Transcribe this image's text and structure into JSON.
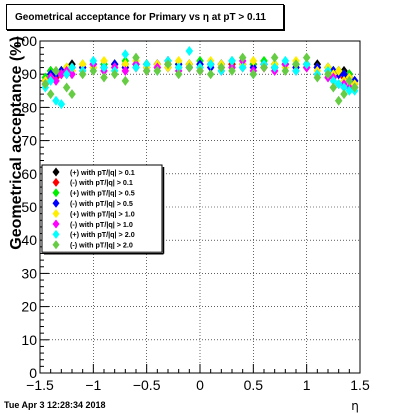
{
  "title": "Geometrical acceptance for Primary vs    η at pT  > 0.11",
  "timestamp": "Tue Apr  3 12:28:34 2018",
  "chart_data": {
    "type": "scatter",
    "xlabel": "η",
    "ylabel": "Geometrical acceptance (%)",
    "xlim": [
      -1.5,
      1.5
    ],
    "ylim": [
      0,
      100
    ],
    "x_ticks": [
      "−1.5",
      "−1",
      "−0.5",
      "0",
      "0.5",
      "1",
      "1.5"
    ],
    "y_ticks": [
      "0",
      "10",
      "20",
      "30",
      "40",
      "50",
      "60",
      "70",
      "80",
      "90",
      "100"
    ],
    "grid": true,
    "legend_position": "left-middle",
    "series": [
      {
        "name": "(+) with pT/|q| > 0.1",
        "color": "#000000",
        "values": [
          [
            -1.45,
            88
          ],
          [
            -1.4,
            91
          ],
          [
            -1.35,
            90
          ],
          [
            -1.3,
            91
          ],
          [
            -1.25,
            91
          ],
          [
            -1.2,
            93
          ],
          [
            -1.1,
            92
          ],
          [
            -1.0,
            93
          ],
          [
            -0.9,
            93
          ],
          [
            -0.8,
            93
          ],
          [
            -0.7,
            93
          ],
          [
            -0.6,
            93
          ],
          [
            -0.5,
            93
          ],
          [
            -0.4,
            93
          ],
          [
            -0.3,
            93
          ],
          [
            -0.2,
            93
          ],
          [
            -0.1,
            93
          ],
          [
            0.0,
            93
          ],
          [
            0.1,
            93
          ],
          [
            0.2,
            93
          ],
          [
            0.3,
            93
          ],
          [
            0.4,
            93
          ],
          [
            0.5,
            93
          ],
          [
            0.6,
            93
          ],
          [
            0.7,
            93
          ],
          [
            0.8,
            93
          ],
          [
            0.9,
            93
          ],
          [
            1.0,
            93
          ],
          [
            1.1,
            93
          ],
          [
            1.2,
            92
          ],
          [
            1.25,
            91
          ],
          [
            1.3,
            91
          ],
          [
            1.35,
            91
          ],
          [
            1.4,
            90
          ],
          [
            1.45,
            88
          ]
        ]
      },
      {
        "name": "(-) with pT/|q| > 0.1",
        "color": "#ff0000",
        "values": [
          [
            -1.45,
            87
          ],
          [
            -1.4,
            89
          ],
          [
            -1.35,
            89
          ],
          [
            -1.3,
            90
          ],
          [
            -1.25,
            90
          ],
          [
            -1.2,
            91
          ],
          [
            -1.1,
            92
          ],
          [
            -1.0,
            92
          ],
          [
            -0.9,
            92
          ],
          [
            -0.8,
            93
          ],
          [
            -0.7,
            92
          ],
          [
            -0.6,
            92
          ],
          [
            -0.5,
            93
          ],
          [
            -0.4,
            92
          ],
          [
            -0.3,
            93
          ],
          [
            -0.2,
            92
          ],
          [
            -0.1,
            93
          ],
          [
            0.0,
            92
          ],
          [
            0.1,
            93
          ],
          [
            0.2,
            92
          ],
          [
            0.3,
            93
          ],
          [
            0.4,
            92
          ],
          [
            0.5,
            93
          ],
          [
            0.6,
            92
          ],
          [
            0.7,
            92
          ],
          [
            0.8,
            93
          ],
          [
            0.9,
            92
          ],
          [
            1.0,
            92
          ],
          [
            1.1,
            92
          ],
          [
            1.2,
            91
          ],
          [
            1.25,
            90
          ],
          [
            1.3,
            90
          ],
          [
            1.35,
            89
          ],
          [
            1.4,
            89
          ],
          [
            1.45,
            87
          ]
        ]
      },
      {
        "name": "(+) with pT/|q| > 0.5",
        "color": "#00ee00",
        "values": [
          [
            -1.45,
            89
          ],
          [
            -1.4,
            91
          ],
          [
            -1.35,
            90
          ],
          [
            -1.3,
            91
          ],
          [
            -1.25,
            92
          ],
          [
            -1.2,
            92
          ],
          [
            -1.1,
            93
          ],
          [
            -1.0,
            92
          ],
          [
            -0.9,
            93
          ],
          [
            -0.8,
            93
          ],
          [
            -0.7,
            94
          ],
          [
            -0.6,
            93
          ],
          [
            -0.5,
            93
          ],
          [
            -0.4,
            93
          ],
          [
            -0.3,
            94
          ],
          [
            -0.2,
            93
          ],
          [
            -0.1,
            93
          ],
          [
            0.0,
            94
          ],
          [
            0.1,
            93
          ],
          [
            0.2,
            93
          ],
          [
            0.3,
            94
          ],
          [
            0.4,
            93
          ],
          [
            0.5,
            93
          ],
          [
            0.6,
            94
          ],
          [
            0.7,
            93
          ],
          [
            0.8,
            93
          ],
          [
            0.9,
            93
          ],
          [
            1.0,
            93
          ],
          [
            1.1,
            92
          ],
          [
            1.2,
            92
          ],
          [
            1.25,
            91
          ],
          [
            1.3,
            91
          ],
          [
            1.35,
            90
          ],
          [
            1.4,
            90
          ],
          [
            1.45,
            88
          ]
        ]
      },
      {
        "name": "(-) with pT/|q| > 0.5",
        "color": "#0000ff",
        "values": [
          [
            -1.45,
            88
          ],
          [
            -1.4,
            90
          ],
          [
            -1.35,
            90
          ],
          [
            -1.3,
            91
          ],
          [
            -1.25,
            91
          ],
          [
            -1.2,
            92
          ],
          [
            -1.1,
            92
          ],
          [
            -1.0,
            93
          ],
          [
            -0.9,
            92
          ],
          [
            -0.8,
            93
          ],
          [
            -0.7,
            92
          ],
          [
            -0.6,
            93
          ],
          [
            -0.5,
            92
          ],
          [
            -0.4,
            93
          ],
          [
            -0.3,
            92
          ],
          [
            -0.2,
            93
          ],
          [
            -0.1,
            92
          ],
          [
            0.0,
            93
          ],
          [
            0.1,
            92
          ],
          [
            0.2,
            93
          ],
          [
            0.3,
            92
          ],
          [
            0.4,
            93
          ],
          [
            0.5,
            92
          ],
          [
            0.6,
            93
          ],
          [
            0.7,
            92
          ],
          [
            0.8,
            93
          ],
          [
            0.9,
            92
          ],
          [
            1.0,
            92
          ],
          [
            1.1,
            92
          ],
          [
            1.2,
            91
          ],
          [
            1.25,
            91
          ],
          [
            1.3,
            90
          ],
          [
            1.35,
            90
          ],
          [
            1.4,
            89
          ],
          [
            1.45,
            88
          ]
        ]
      },
      {
        "name": "(+) with pT/|q| > 1.0",
        "color": "#ffee00",
        "values": [
          [
            -1.45,
            88
          ],
          [
            -1.4,
            89
          ],
          [
            -1.35,
            91
          ],
          [
            -1.3,
            90
          ],
          [
            -1.25,
            92
          ],
          [
            -1.2,
            91
          ],
          [
            -1.1,
            93
          ],
          [
            -1.0,
            92
          ],
          [
            -0.9,
            94
          ],
          [
            -0.8,
            92
          ],
          [
            -0.7,
            93
          ],
          [
            -0.6,
            94
          ],
          [
            -0.5,
            92
          ],
          [
            -0.4,
            93
          ],
          [
            -0.3,
            92
          ],
          [
            -0.2,
            94
          ],
          [
            -0.1,
            93
          ],
          [
            0.0,
            92
          ],
          [
            0.1,
            94
          ],
          [
            0.2,
            93
          ],
          [
            0.3,
            92
          ],
          [
            0.4,
            93
          ],
          [
            0.5,
            94
          ],
          [
            0.6,
            92
          ],
          [
            0.7,
            93
          ],
          [
            0.8,
            92
          ],
          [
            0.9,
            94
          ],
          [
            1.0,
            92
          ],
          [
            1.1,
            91
          ],
          [
            1.2,
            92
          ],
          [
            1.25,
            90
          ],
          [
            1.3,
            91
          ],
          [
            1.35,
            88
          ],
          [
            1.4,
            89
          ],
          [
            1.45,
            87
          ]
        ]
      },
      {
        "name": "(-) with pT/|q| > 1.0",
        "color": "#ff00ff",
        "values": [
          [
            -1.45,
            87
          ],
          [
            -1.4,
            89
          ],
          [
            -1.35,
            88
          ],
          [
            -1.3,
            90
          ],
          [
            -1.25,
            91
          ],
          [
            -1.2,
            90
          ],
          [
            -1.1,
            91
          ],
          [
            -1.0,
            93
          ],
          [
            -0.9,
            91
          ],
          [
            -0.8,
            92
          ],
          [
            -0.7,
            91
          ],
          [
            -0.6,
            93
          ],
          [
            -0.5,
            91
          ],
          [
            -0.4,
            92
          ],
          [
            -0.3,
            94
          ],
          [
            -0.2,
            91
          ],
          [
            -0.1,
            92
          ],
          [
            0.0,
            91
          ],
          [
            0.1,
            93
          ],
          [
            0.2,
            91
          ],
          [
            0.3,
            92
          ],
          [
            0.4,
            94
          ],
          [
            0.5,
            91
          ],
          [
            0.6,
            92
          ],
          [
            0.7,
            91
          ],
          [
            0.8,
            93
          ],
          [
            0.9,
            91
          ],
          [
            1.0,
            92
          ],
          [
            1.1,
            90
          ],
          [
            1.2,
            89
          ],
          [
            1.25,
            89
          ],
          [
            1.3,
            87
          ],
          [
            1.35,
            87
          ],
          [
            1.4,
            86
          ],
          [
            1.45,
            86
          ]
        ]
      },
      {
        "name": "(+) with pT/|q| > 2.0",
        "color": "#00ffff",
        "values": [
          [
            -1.45,
            86
          ],
          [
            -1.4,
            88
          ],
          [
            -1.35,
            82
          ],
          [
            -1.3,
            81
          ],
          [
            -1.25,
            90
          ],
          [
            -1.2,
            92
          ],
          [
            -1.1,
            91
          ],
          [
            -1.0,
            94
          ],
          [
            -0.9,
            92
          ],
          [
            -0.8,
            91
          ],
          [
            -0.7,
            96
          ],
          [
            -0.6,
            92
          ],
          [
            -0.5,
            93
          ],
          [
            -0.4,
            91
          ],
          [
            -0.3,
            94
          ],
          [
            -0.2,
            92
          ],
          [
            -0.1,
            97
          ],
          [
            0.0,
            92
          ],
          [
            0.1,
            93
          ],
          [
            0.2,
            91
          ],
          [
            0.3,
            94
          ],
          [
            0.4,
            92
          ],
          [
            0.5,
            90
          ],
          [
            0.6,
            93
          ],
          [
            0.7,
            92
          ],
          [
            0.8,
            94
          ],
          [
            0.9,
            91
          ],
          [
            1.0,
            93
          ],
          [
            1.1,
            90
          ],
          [
            1.2,
            91
          ],
          [
            1.25,
            88
          ],
          [
            1.3,
            87
          ],
          [
            1.35,
            86
          ],
          [
            1.4,
            85
          ],
          [
            1.45,
            85
          ]
        ]
      },
      {
        "name": "(-) with pT/|q| > 2.0",
        "color": "#66cc44",
        "values": [
          [
            -1.45,
            87
          ],
          [
            -1.4,
            84
          ],
          [
            -1.35,
            91
          ],
          [
            -1.25,
            86
          ],
          [
            -1.2,
            84
          ],
          [
            -1.1,
            90
          ],
          [
            -1.0,
            91
          ],
          [
            -0.9,
            89
          ],
          [
            -0.8,
            90
          ],
          [
            -0.7,
            88
          ],
          [
            -0.6,
            95
          ],
          [
            -0.5,
            91
          ],
          [
            -0.4,
            91
          ],
          [
            -0.3,
            93
          ],
          [
            -0.2,
            90
          ],
          [
            -0.1,
            92
          ],
          [
            0.0,
            91
          ],
          [
            0.1,
            90
          ],
          [
            0.2,
            92
          ],
          [
            0.3,
            91
          ],
          [
            0.4,
            95
          ],
          [
            0.5,
            90
          ],
          [
            0.6,
            92
          ],
          [
            0.7,
            95
          ],
          [
            0.8,
            91
          ],
          [
            0.9,
            93
          ],
          [
            1.0,
            95
          ],
          [
            1.1,
            89
          ],
          [
            1.2,
            90
          ],
          [
            1.25,
            86
          ],
          [
            1.3,
            82
          ],
          [
            1.35,
            84
          ],
          [
            1.4,
            88
          ],
          [
            1.45,
            86
          ]
        ]
      }
    ]
  }
}
